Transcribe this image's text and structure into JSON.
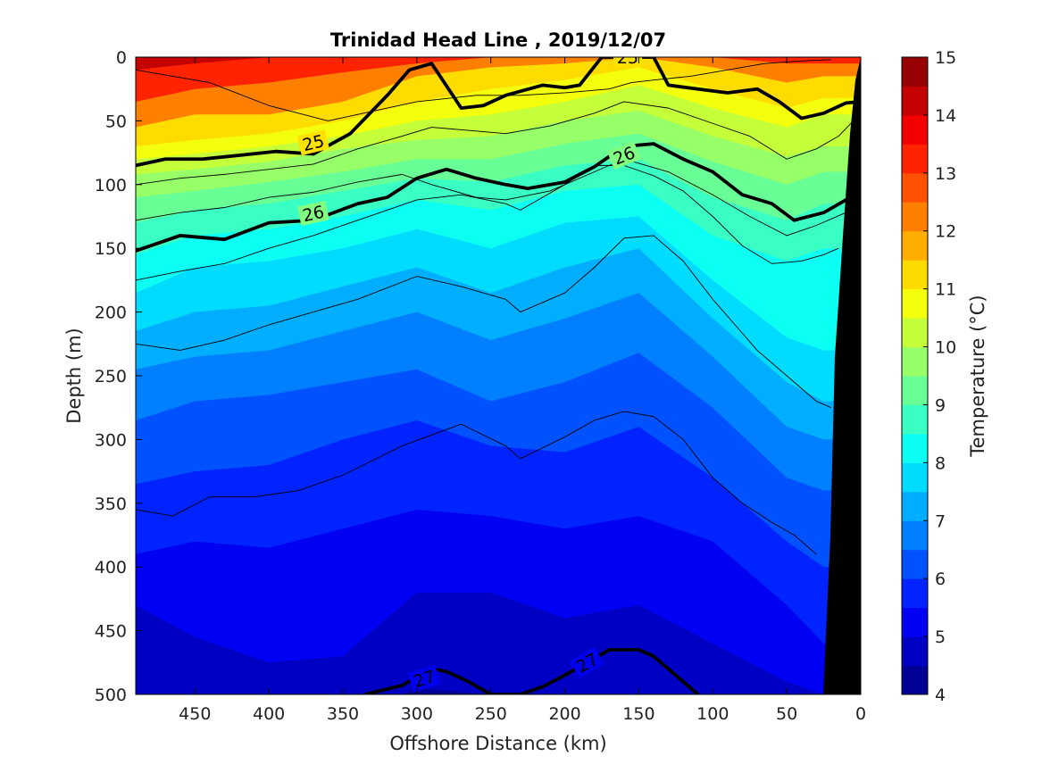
{
  "chart_data": {
    "type": "contour",
    "title": "Trinidad Head Line , 2019/12/07",
    "xlabel": "Offshore Distance (km)",
    "ylabel": "Depth (m)",
    "colorbar_label": "Temperature (°C)",
    "x_reversed": true,
    "y_reversed": true,
    "xlim": [
      0,
      490
    ],
    "ylim": [
      0,
      500
    ],
    "xticks": [
      450,
      400,
      350,
      300,
      250,
      200,
      150,
      100,
      50,
      0
    ],
    "yticks": [
      0,
      50,
      100,
      150,
      200,
      250,
      300,
      350,
      400,
      450,
      500
    ],
    "colorbar": {
      "range": [
        4,
        15
      ],
      "ticks": [
        4,
        5,
        6,
        7,
        8,
        9,
        10,
        11,
        12,
        13,
        14,
        15
      ],
      "step": 0.5
    },
    "isotherm_depth_profiles": {
      "x_km": [
        490,
        450,
        400,
        350,
        300,
        250,
        200,
        150,
        100,
        50,
        25
      ],
      "levels": [
        {
          "temp": 14.0,
          "depth": [
            10,
            5,
            0,
            0,
            0,
            0,
            0,
            0,
            0,
            0,
            0
          ]
        },
        {
          "temp": 13.0,
          "depth": [
            35,
            25,
            20,
            12,
            5,
            0,
            0,
            0,
            0,
            5,
            5
          ]
        },
        {
          "temp": 12.0,
          "depth": [
            55,
            45,
            45,
            35,
            15,
            8,
            5,
            0,
            8,
            20,
            15
          ]
        },
        {
          "temp": 11.0,
          "depth": [
            70,
            65,
            60,
            50,
            35,
            25,
            18,
            8,
            25,
            40,
            32
          ]
        },
        {
          "temp": 10.5,
          "depth": [
            80,
            76,
            70,
            62,
            50,
            45,
            35,
            22,
            40,
            55,
            45
          ]
        },
        {
          "temp": 10.0,
          "depth": [
            92,
            88,
            82,
            72,
            65,
            62,
            50,
            42,
            62,
            78,
            70
          ]
        },
        {
          "temp": 9.5,
          "depth": [
            110,
            105,
            98,
            90,
            80,
            80,
            68,
            60,
            82,
            100,
            90
          ]
        },
        {
          "temp": 9.0,
          "depth": [
            130,
            120,
            115,
            105,
            95,
            98,
            85,
            80,
            110,
            128,
            115
          ]
        },
        {
          "temp": 8.5,
          "depth": [
            155,
            140,
            135,
            125,
            112,
            120,
            105,
            100,
            140,
            160,
            150
          ]
        },
        {
          "temp": 8.0,
          "depth": [
            185,
            165,
            160,
            150,
            135,
            150,
            130,
            125,
            175,
            220,
            230
          ]
        },
        {
          "temp": 7.5,
          "depth": [
            215,
            200,
            195,
            180,
            165,
            185,
            165,
            150,
            205,
            255,
            270
          ]
        },
        {
          "temp": 7.0,
          "depth": [
            245,
            235,
            230,
            215,
            200,
            222,
            205,
            185,
            235,
            290,
            300
          ]
        },
        {
          "temp": 6.5,
          "depth": [
            285,
            270,
            265,
            255,
            245,
            270,
            255,
            232,
            275,
            330,
            340
          ]
        },
        {
          "temp": 6.0,
          "depth": [
            335,
            325,
            320,
            300,
            285,
            305,
            310,
            290,
            330,
            380,
            400
          ]
        },
        {
          "temp": 5.5,
          "depth": [
            390,
            380,
            385,
            370,
            355,
            360,
            370,
            360,
            380,
            430,
            460
          ]
        },
        {
          "temp": 5.0,
          "depth": [
            430,
            455,
            475,
            470,
            420,
            420,
            440,
            430,
            460,
            490,
            500
          ]
        },
        {
          "temp": 4.5,
          "depth": [
            520,
            520,
            520,
            520,
            495,
            500,
            515,
            510,
            520,
            520,
            520
          ]
        }
      ]
    },
    "density_contours": [
      {
        "sigma": 25,
        "label": "25",
        "x_km": [
          490,
          470,
          445,
          420,
          395,
          370,
          345,
          320,
          305,
          290,
          270,
          255,
          240,
          215,
          200,
          190,
          175,
          150,
          140,
          130,
          110,
          90,
          70,
          55,
          40,
          25,
          10,
          0
        ],
        "depth": [
          85,
          80,
          80,
          77,
          74,
          76,
          60,
          30,
          10,
          5,
          40,
          38,
          30,
          22,
          24,
          22,
          0,
          0,
          0,
          22,
          25,
          28,
          25,
          35,
          48,
          44,
          36,
          35
        ]
      },
      {
        "sigma": 26,
        "label": "26",
        "x_km": [
          490,
          460,
          430,
          400,
          370,
          340,
          320,
          300,
          280,
          260,
          240,
          225,
          200,
          180,
          160,
          140,
          120,
          100,
          80,
          60,
          45,
          25,
          10,
          0
        ],
        "depth": [
          152,
          140,
          143,
          130,
          128,
          115,
          110,
          95,
          88,
          95,
          100,
          103,
          98,
          86,
          70,
          68,
          80,
          90,
          108,
          115,
          128,
          122,
          112,
          102
        ]
      },
      {
        "sigma": 27,
        "label": "27",
        "x_km": [
          335,
          310,
          290,
          280,
          265,
          250,
          230,
          215,
          200,
          185,
          170,
          150,
          140,
          120,
          110
        ],
        "depth": [
          500,
          493,
          480,
          482,
          490,
          500,
          500,
          494,
          485,
          475,
          465,
          465,
          470,
          490,
          500
        ]
      }
    ],
    "thin_contours": [
      {
        "x_km": [
          490,
          440,
          400,
          360,
          320,
          300,
          260,
          230,
          200,
          170,
          155,
          140,
          115,
          90,
          65,
          40,
          20
        ],
        "depth": [
          10,
          20,
          38,
          50,
          40,
          35,
          30,
          30,
          28,
          25,
          20,
          18,
          15,
          10,
          5,
          3,
          2
        ]
      },
      {
        "x_km": [
          490,
          460,
          430,
          400,
          370,
          340,
          310,
          290,
          260,
          240,
          210,
          180,
          160,
          130,
          100,
          75,
          50,
          30,
          15,
          5
        ],
        "depth": [
          100,
          95,
          92,
          88,
          84,
          72,
          62,
          55,
          58,
          60,
          54,
          44,
          35,
          40,
          52,
          62,
          80,
          72,
          62,
          50
        ]
      },
      {
        "x_km": [
          490,
          460,
          430,
          400,
          370,
          340,
          310,
          290,
          260,
          240,
          210,
          180,
          160,
          130,
          100,
          75,
          50,
          30,
          10
        ],
        "depth": [
          128,
          122,
          118,
          110,
          106,
          98,
          92,
          100,
          110,
          112,
          105,
          90,
          80,
          90,
          108,
          125,
          140,
          132,
          122
        ]
      },
      {
        "x_km": [
          490,
          460,
          430,
          400,
          370,
          340,
          300,
          270,
          240,
          230,
          200,
          180,
          160,
          140,
          120,
          100,
          80,
          60,
          40,
          25,
          15
        ],
        "depth": [
          175,
          168,
          162,
          150,
          140,
          128,
          112,
          108,
          115,
          120,
          100,
          85,
          85,
          93,
          105,
          125,
          148,
          162,
          160,
          155,
          150
        ]
      },
      {
        "x_km": [
          490,
          460,
          430,
          400,
          370,
          340,
          300,
          270,
          240,
          230,
          200,
          180,
          160,
          140,
          120,
          100,
          85,
          70,
          50,
          30,
          20
        ],
        "depth": [
          225,
          230,
          222,
          210,
          200,
          190,
          172,
          180,
          190,
          200,
          185,
          165,
          142,
          140,
          160,
          190,
          210,
          230,
          250,
          270,
          275
        ]
      },
      {
        "x_km": [
          490,
          465,
          440,
          410,
          380,
          350,
          310,
          270,
          240,
          230,
          200,
          180,
          160,
          140,
          120,
          100,
          80,
          60,
          45,
          30
        ],
        "depth": [
          355,
          360,
          345,
          345,
          340,
          328,
          305,
          288,
          305,
          315,
          298,
          285,
          278,
          282,
          300,
          330,
          350,
          365,
          375,
          390
        ]
      }
    ]
  }
}
